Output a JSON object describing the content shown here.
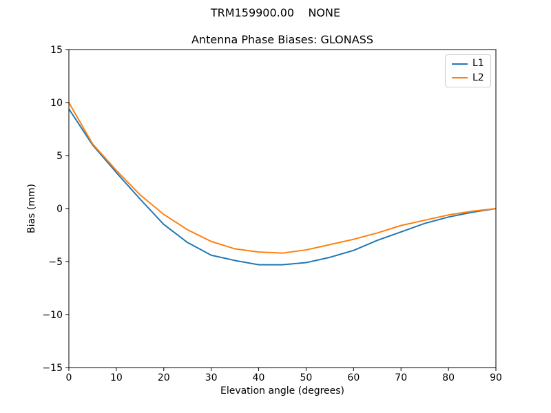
{
  "figure": {
    "suptitle": "TRM159900.00    NONE",
    "background": "#ffffff",
    "axes_color": "#000000"
  },
  "chart_data": {
    "type": "line",
    "title": "Antenna Phase Biases: GLONASS",
    "xlabel": "Elevation angle (degrees)",
    "ylabel": "Bias (mm)",
    "xlim": [
      0,
      90
    ],
    "ylim": [
      -15,
      15
    ],
    "xticks": [
      0,
      10,
      20,
      30,
      40,
      50,
      60,
      70,
      80,
      90
    ],
    "yticks": [
      -15,
      -10,
      -5,
      0,
      5,
      10,
      15
    ],
    "grid": false,
    "legend_position": "upper right",
    "x": [
      0,
      5,
      10,
      15,
      20,
      25,
      30,
      35,
      40,
      45,
      50,
      55,
      60,
      65,
      70,
      75,
      80,
      85,
      90
    ],
    "series": [
      {
        "name": "L1",
        "color": "#1f77b4",
        "values": [
          9.4,
          6.0,
          3.4,
          0.9,
          -1.5,
          -3.2,
          -4.4,
          -4.9,
          -5.3,
          -5.3,
          -5.1,
          -4.6,
          -3.95,
          -3.0,
          -2.2,
          -1.4,
          -0.8,
          -0.35,
          0.0
        ]
      },
      {
        "name": "L2",
        "color": "#ff7f0e",
        "values": [
          10.0,
          6.1,
          3.6,
          1.3,
          -0.55,
          -2.0,
          -3.1,
          -3.8,
          -4.1,
          -4.2,
          -3.9,
          -3.4,
          -2.9,
          -2.3,
          -1.6,
          -1.1,
          -0.6,
          -0.25,
          0.0
        ]
      }
    ]
  }
}
